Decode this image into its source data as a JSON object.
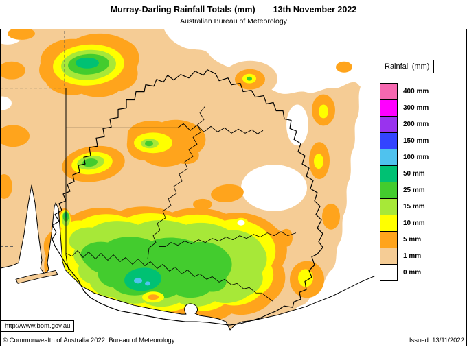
{
  "header": {
    "title": "Murray-Darling Rainfall Totals (mm)",
    "date": "13th November 2022",
    "subtitle": "Australian Bureau of Meteorology"
  },
  "legend": {
    "title": "Rainfall (mm)",
    "entries": [
      {
        "label": "400 mm",
        "color": "#F668B0"
      },
      {
        "label": "300 mm",
        "color": "#FF00FF"
      },
      {
        "label": "200 mm",
        "color": "#9933EE"
      },
      {
        "label": "150 mm",
        "color": "#3344FF"
      },
      {
        "label": "100 mm",
        "color": "#4FC2EE"
      },
      {
        "label": "50 mm",
        "color": "#00C173"
      },
      {
        "label": "25 mm",
        "color": "#43CC2E"
      },
      {
        "label": "15 mm",
        "color": "#A7E838"
      },
      {
        "label": "10 mm",
        "color": "#FFFF00"
      },
      {
        "label": "5 mm",
        "color": "#FFA41C"
      },
      {
        "label": "1 mm",
        "color": "#F5CC95"
      },
      {
        "label": "0 mm",
        "color": "#FFFFFF"
      }
    ]
  },
  "map": {
    "url_label": "http://www.bom.gov.au"
  },
  "footer": {
    "copyright": "© Commonwealth of Australia 2022, Bureau of Meteorology",
    "issued": "Issued: 13/11/2022"
  }
}
